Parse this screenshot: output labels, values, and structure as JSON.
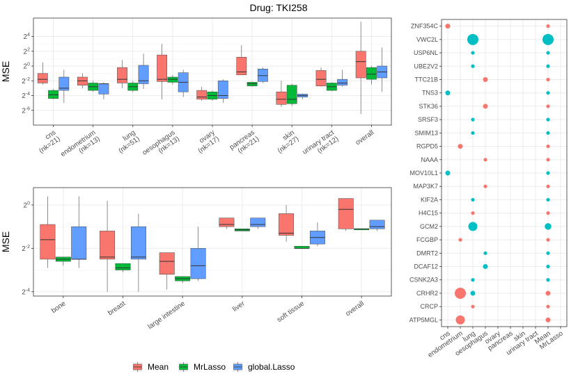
{
  "title": "Drug: TKI258",
  "colors": {
    "Mean": "#F8766D",
    "MrLasso": "#00BA38",
    "global.Lasso": "#619CFF",
    "teal": "#00BFC4",
    "grid": "#ebebeb",
    "panel_border": "#333333"
  },
  "legend": {
    "items": [
      "Mean",
      "MrLasso",
      "global.Lasso"
    ]
  },
  "chart_data": [
    {
      "type": "box",
      "panel": "top-left",
      "ylabel": "MSE",
      "yscale": "log2",
      "ylim_log2": [
        -8,
        6.5
      ],
      "yticks": [
        {
          "v": 4,
          "label": "2^4"
        },
        {
          "v": 2,
          "label": "2^2"
        },
        {
          "v": 0,
          "label": "2^0"
        },
        {
          "v": -2,
          "label": "2^-2"
        },
        {
          "v": -4,
          "label": "2^-4"
        },
        {
          "v": -6,
          "label": "2^-6"
        }
      ],
      "categories": [
        "cns\n(nk=21)",
        "endometrium\n(nk=13)",
        "lung\n(nk=51)",
        "oesophagus\n(nk=13)",
        "ovary\n(nk=17)",
        "pancreas\n(nk=21)",
        "skin\n(nk=27)",
        "urinary tract\n(nk=12)",
        "overall"
      ],
      "series": [
        {
          "name": "Mean",
          "boxes": [
            [
              -2.5,
              -2.3,
              -1.8,
              -1.0,
              0.5
            ],
            [
              -3.0,
              -2.6,
              -2.0,
              -1.5,
              -1.0
            ],
            [
              -3.0,
              -2.3,
              -1.8,
              -0.2,
              0.8
            ],
            [
              -4.5,
              -2.1,
              -1.8,
              1.5,
              3.0
            ],
            [
              -4.7,
              -4.5,
              -4.2,
              -3.3,
              -2.8
            ],
            [
              -1.0,
              -1.2,
              -0.8,
              1.2,
              2.8
            ],
            [
              -5.5,
              -5.2,
              -4.5,
              -3.5,
              -2.0
            ],
            [
              -2.8,
              -2.7,
              -1.8,
              -0.6,
              -0.2
            ],
            [
              -6.5,
              -1.6,
              0.6,
              2.0,
              6.0
            ]
          ]
        },
        {
          "name": "MrLasso",
          "boxes": [
            [
              -4.5,
              -4.4,
              -3.9,
              -3.3,
              -3.1
            ],
            [
              -3.5,
              -3.3,
              -2.8,
              -2.3,
              -2.0
            ],
            [
              -3.5,
              -3.3,
              -2.8,
              -2.3,
              -2.0
            ],
            [
              -2.5,
              -2.2,
              -1.8,
              -1.5,
              -1.2
            ],
            [
              -4.7,
              -4.5,
              -4.0,
              -3.5,
              -3.3
            ],
            [
              -2.8,
              -2.7,
              -2.4,
              -2.2,
              -2.1
            ],
            [
              -5.4,
              -5.1,
              -4.5,
              -2.6,
              -2.4
            ],
            [
              -3.4,
              -3.3,
              -2.8,
              -2.3,
              -2.2
            ],
            [
              -2.5,
              -1.8,
              -1.1,
              -0.2,
              0.0
            ]
          ]
        },
        {
          "name": "global.Lasso",
          "boxes": [
            [
              -5.0,
              -3.3,
              -3.0,
              -1.5,
              -0.5
            ],
            [
              -4.5,
              -3.8,
              -2.4,
              -2.4,
              -2.2
            ],
            [
              -3.1,
              -2.4,
              -2.0,
              0.1,
              1.7
            ],
            [
              -4.2,
              -3.5,
              -2.2,
              -0.9,
              -0.5
            ],
            [
              -5.0,
              -4.4,
              -4.0,
              -2.0,
              -1.8
            ],
            [
              -2.3,
              -2.1,
              -1.3,
              -0.4,
              -0.2
            ],
            [
              -4.5,
              -4.2,
              -4.0,
              -3.8,
              -3.7
            ],
            [
              -2.8,
              -2.6,
              -2.3,
              -1.8,
              -0.5
            ],
            [
              -3.5,
              -1.6,
              -0.8,
              0.0,
              2.5
            ]
          ]
        }
      ]
    },
    {
      "type": "box",
      "panel": "bottom-left",
      "ylabel": "MSE",
      "yscale": "log2",
      "ylim_log2": [
        -4.2,
        0.8
      ],
      "yticks": [
        {
          "v": 0,
          "label": "2^0"
        },
        {
          "v": -2,
          "label": "2^-2"
        },
        {
          "v": -4,
          "label": "2^-4"
        }
      ],
      "categories": [
        "bone",
        "breast",
        "large intestine",
        "liver",
        "soft tissue",
        "overall"
      ],
      "series": [
        {
          "name": "Mean",
          "boxes": [
            [
              -2.9,
              -2.5,
              -1.6,
              -0.9,
              0.4
            ],
            [
              -4.0,
              -2.5,
              -2.4,
              -1.2,
              0.2
            ],
            [
              -3.9,
              -3.2,
              -2.6,
              -2.2,
              -2.2
            ],
            [
              -1.1,
              -1.0,
              -0.9,
              -0.6,
              -0.6
            ],
            [
              -1.7,
              -1.4,
              -1.3,
              -0.4,
              0.0
            ],
            [
              -1.2,
              -1.1,
              -0.2,
              0.3,
              0.3
            ]
          ]
        },
        {
          "name": "MrLasso",
          "boxes": [
            [
              -2.8,
              -2.6,
              -2.5,
              -2.4,
              -2.4
            ],
            [
              -3.1,
              -3.0,
              -2.9,
              -2.7,
              -2.7
            ],
            [
              -3.6,
              -3.5,
              -3.4,
              -3.3,
              -3.3
            ],
            [
              -1.2,
              -1.2,
              -1.15,
              -1.1,
              -1.1
            ],
            [
              -2.0,
              -2.0,
              -2.0,
              -1.9,
              -1.9
            ],
            [
              -1.15,
              -1.15,
              -1.1,
              -1.1,
              -1.1
            ]
          ]
        },
        {
          "name": "global.Lasso",
          "boxes": [
            [
              -2.9,
              -2.5,
              -2.5,
              -1.0,
              0.4
            ],
            [
              -4.0,
              -2.5,
              -2.4,
              -1.0,
              -0.4
            ],
            [
              -3.5,
              -3.4,
              -2.8,
              -2.0,
              -1.0
            ],
            [
              -1.1,
              -1.0,
              -0.9,
              -0.6,
              -0.6
            ],
            [
              -1.9,
              -1.8,
              -1.5,
              -1.2,
              -0.8
            ],
            [
              -1.2,
              -1.1,
              -1.0,
              -0.7,
              -0.7
            ]
          ]
        }
      ]
    },
    {
      "type": "scatter",
      "panel": "right",
      "x_categories": [
        "cns",
        "endometrium",
        "lung",
        "oesophagus",
        "ovary",
        "pancreas",
        "skin",
        "urinary tract",
        "Mean",
        "MrLasso"
      ],
      "y_categories": [
        "ZNF354C",
        "VWC2L",
        "USP6NL",
        "UBE2V2",
        "TTC21B",
        "TNS3",
        "STK36",
        "SRSF3",
        "SMIM13",
        "RGPD5",
        "NAAA",
        "MOV10L1",
        "MAP3K7",
        "KIF2A",
        "H4C15",
        "GCM2",
        "FCGBP",
        "DMRT2",
        "DCAF12",
        "CSNK2A3",
        "CRHR2",
        "CRCP",
        "ATP5MGL"
      ],
      "points": [
        {
          "x": "cns",
          "y": "ZNF354C",
          "size": 2,
          "color": "red"
        },
        {
          "x": "Mean",
          "y": "ZNF354C",
          "size": 1,
          "color": "red"
        },
        {
          "x": "lung",
          "y": "VWC2L",
          "size": 5,
          "color": "teal"
        },
        {
          "x": "Mean",
          "y": "VWC2L",
          "size": 5,
          "color": "teal"
        },
        {
          "x": "lung",
          "y": "USP6NL",
          "size": 1,
          "color": "teal"
        },
        {
          "x": "Mean",
          "y": "USP6NL",
          "size": 1,
          "color": "teal"
        },
        {
          "x": "lung",
          "y": "UBE2V2",
          "size": 1,
          "color": "teal"
        },
        {
          "x": "Mean",
          "y": "UBE2V2",
          "size": 1,
          "color": "teal"
        },
        {
          "x": "oesophagus",
          "y": "TTC21B",
          "size": 2,
          "color": "red"
        },
        {
          "x": "Mean",
          "y": "TTC21B",
          "size": 1,
          "color": "red"
        },
        {
          "x": "cns",
          "y": "TNS3",
          "size": 2,
          "color": "teal"
        },
        {
          "x": "Mean",
          "y": "TNS3",
          "size": 1,
          "color": "teal"
        },
        {
          "x": "oesophagus",
          "y": "STK36",
          "size": 2,
          "color": "red"
        },
        {
          "x": "Mean",
          "y": "STK36",
          "size": 1,
          "color": "red"
        },
        {
          "x": "lung",
          "y": "SRSF3",
          "size": 1,
          "color": "teal"
        },
        {
          "x": "Mean",
          "y": "SRSF3",
          "size": 1,
          "color": "teal"
        },
        {
          "x": "lung",
          "y": "SMIM13",
          "size": 1,
          "color": "teal"
        },
        {
          "x": "Mean",
          "y": "SMIM13",
          "size": 1,
          "color": "teal"
        },
        {
          "x": "endometrium",
          "y": "RGPD5",
          "size": 2,
          "color": "red"
        },
        {
          "x": "Mean",
          "y": "RGPD5",
          "size": 1,
          "color": "red"
        },
        {
          "x": "oesophagus",
          "y": "NAAA",
          "size": 1,
          "color": "red"
        },
        {
          "x": "Mean",
          "y": "NAAA",
          "size": 1,
          "color": "red"
        },
        {
          "x": "cns",
          "y": "MOV10L1",
          "size": 2,
          "color": "teal"
        },
        {
          "x": "Mean",
          "y": "MOV10L1",
          "size": 1,
          "color": "teal"
        },
        {
          "x": "oesophagus",
          "y": "MAP3K7",
          "size": 1,
          "color": "red"
        },
        {
          "x": "Mean",
          "y": "MAP3K7",
          "size": 1,
          "color": "red"
        },
        {
          "x": "lung",
          "y": "KIF2A",
          "size": 1,
          "color": "teal"
        },
        {
          "x": "Mean",
          "y": "KIF2A",
          "size": 1,
          "color": "teal"
        },
        {
          "x": "lung",
          "y": "H4C15",
          "size": 1,
          "color": "red"
        },
        {
          "x": "Mean",
          "y": "H4C15",
          "size": 1,
          "color": "red"
        },
        {
          "x": "lung",
          "y": "GCM2",
          "size": 4,
          "color": "teal"
        },
        {
          "x": "Mean",
          "y": "GCM2",
          "size": 3,
          "color": "teal"
        },
        {
          "x": "endometrium",
          "y": "FCGBP",
          "size": 1,
          "color": "red"
        },
        {
          "x": "Mean",
          "y": "FCGBP",
          "size": 1,
          "color": "red"
        },
        {
          "x": "oesophagus",
          "y": "DMRT2",
          "size": 1,
          "color": "teal"
        },
        {
          "x": "Mean",
          "y": "DMRT2",
          "size": 1,
          "color": "teal"
        },
        {
          "x": "oesophagus",
          "y": "DCAF12",
          "size": 2,
          "color": "teal"
        },
        {
          "x": "Mean",
          "y": "DCAF12",
          "size": 1,
          "color": "teal"
        },
        {
          "x": "lung",
          "y": "CSNK2A3",
          "size": 1,
          "color": "teal"
        },
        {
          "x": "Mean",
          "y": "CSNK2A3",
          "size": 1,
          "color": "teal"
        },
        {
          "x": "endometrium",
          "y": "CRHR2",
          "size": 5,
          "color": "red"
        },
        {
          "x": "lung",
          "y": "CRHR2",
          "size": 2,
          "color": "teal"
        },
        {
          "x": "Mean",
          "y": "CRHR2",
          "size": 2,
          "color": "red"
        },
        {
          "x": "lung",
          "y": "CRCP",
          "size": 1,
          "color": "red"
        },
        {
          "x": "Mean",
          "y": "CRCP",
          "size": 1,
          "color": "red"
        },
        {
          "x": "endometrium",
          "y": "ATP5MGL",
          "size": 4,
          "color": "red"
        },
        {
          "x": "Mean",
          "y": "ATP5MGL",
          "size": 2,
          "color": "red"
        }
      ]
    }
  ]
}
